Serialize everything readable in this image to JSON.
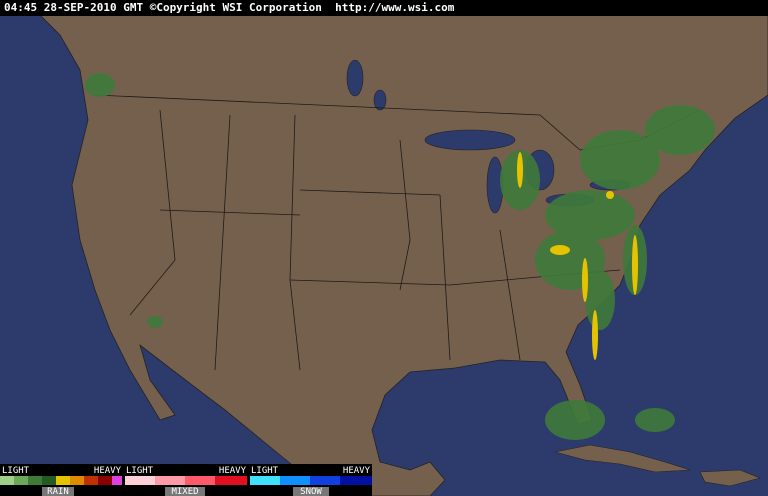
{
  "header": {
    "text": "04:45 28-SEP-2010 GMT ©Copyright WSI Corporation  http://www.wsi.com"
  },
  "legend": [
    {
      "light": "LIGHT",
      "heavy": "HEAVY",
      "label": "RAIN"
    },
    {
      "light": "LIGHT",
      "heavy": "HEAVY",
      "label": "MIXED"
    },
    {
      "light": "LIGHT",
      "heavy": "HEAVY",
      "label": "SNOW"
    }
  ]
}
